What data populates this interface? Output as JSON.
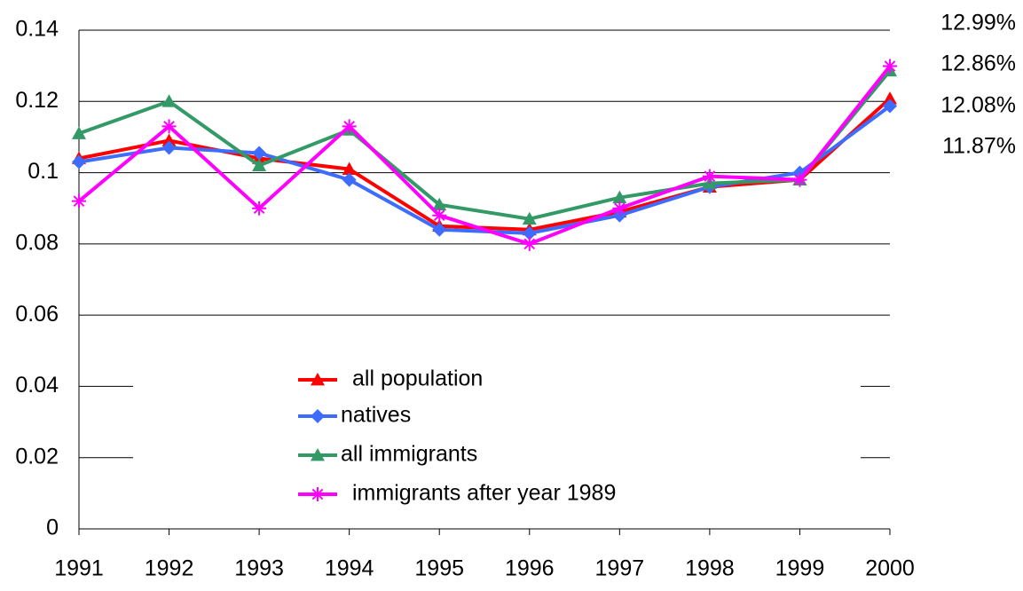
{
  "chart_data": {
    "type": "line",
    "categories": [
      "1991",
      "1992",
      "1993",
      "1994",
      "1995",
      "1996",
      "1997",
      "1998",
      "1999",
      "2000"
    ],
    "series": [
      {
        "name": "all population",
        "color": "#ff0000",
        "marker": "triangle",
        "values": [
          0.104,
          0.109,
          0.104,
          0.101,
          0.085,
          0.084,
          0.089,
          0.096,
          0.098,
          0.1208
        ],
        "value_labels": [
          null,
          null,
          null,
          null,
          null,
          null,
          null,
          null,
          null,
          "12.08%"
        ]
      },
      {
        "name": "natives",
        "color": "#3d6cff",
        "marker": "diamond",
        "values": [
          0.103,
          0.107,
          0.1055,
          0.098,
          0.084,
          0.083,
          0.088,
          0.096,
          0.1,
          0.1187
        ],
        "value_labels": [
          null,
          null,
          null,
          null,
          null,
          null,
          null,
          null,
          null,
          "11.87%"
        ]
      },
      {
        "name": "all immigrants",
        "color": "#339966",
        "marker": "triangle",
        "values": [
          0.111,
          0.12,
          0.102,
          0.112,
          0.091,
          0.087,
          0.093,
          0.097,
          0.098,
          0.1286
        ],
        "value_labels": [
          null,
          null,
          null,
          null,
          null,
          null,
          null,
          null,
          null,
          "12.86%"
        ]
      },
      {
        "name": "immigrants after year 1989",
        "color": "#ff00ff",
        "marker": "asterisk",
        "values": [
          0.092,
          0.113,
          0.09,
          0.113,
          0.088,
          0.08,
          0.09,
          0.099,
          0.098,
          0.1299
        ],
        "value_labels": [
          null,
          null,
          null,
          null,
          null,
          null,
          null,
          null,
          null,
          "12.99%"
        ]
      }
    ],
    "ylim": [
      0,
      0.14
    ],
    "yticks": [
      0,
      0.02,
      0.04,
      0.06,
      0.08,
      0.1,
      0.12,
      0.14
    ],
    "grid": true
  }
}
